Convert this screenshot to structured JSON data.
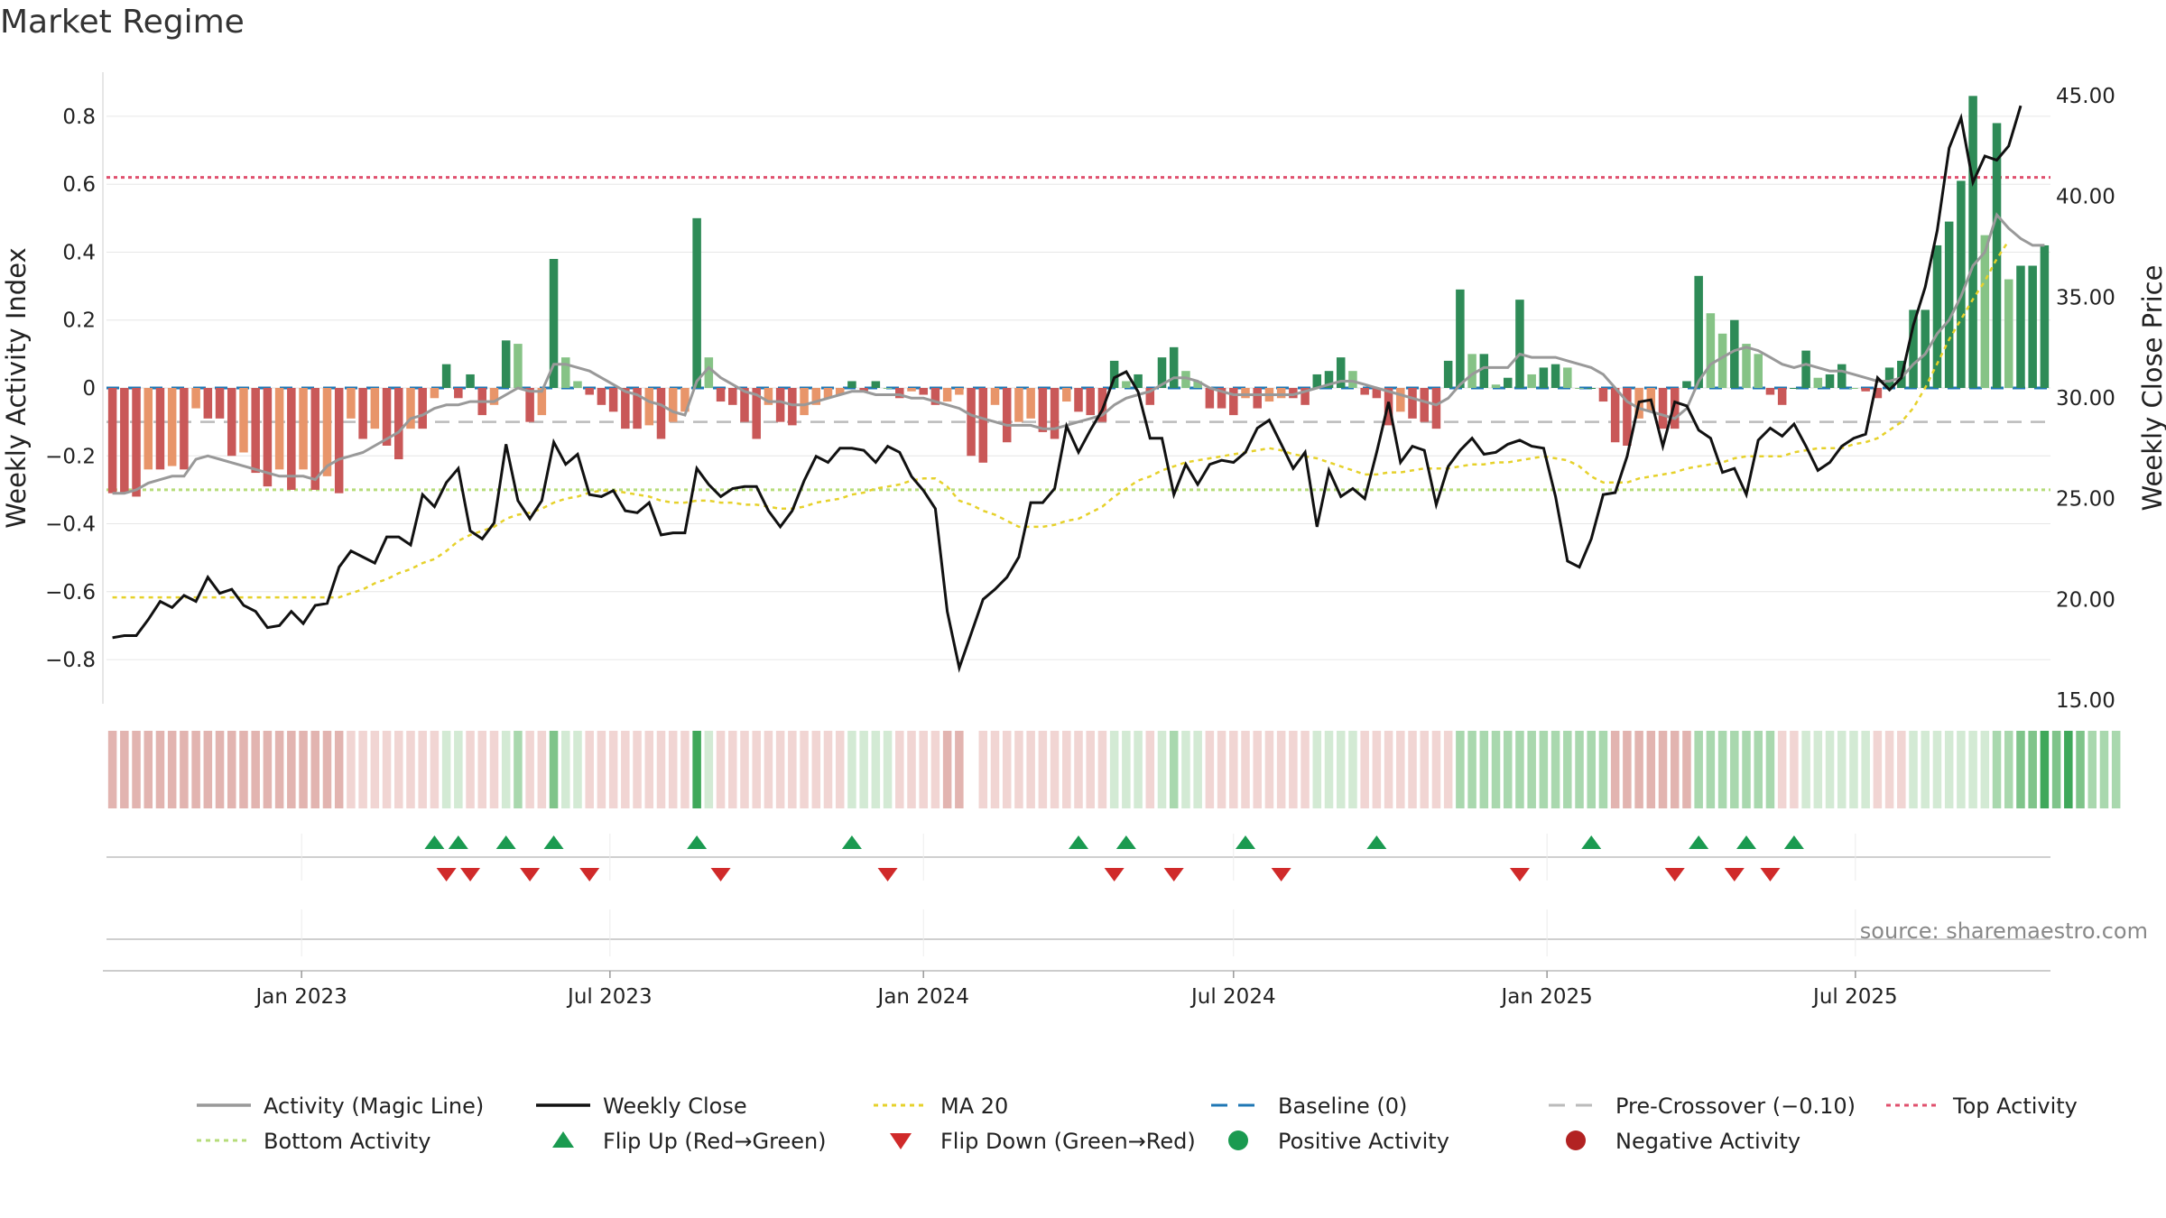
{
  "title": "Market Regime",
  "source": "source: sharemaestro.com",
  "colors": {
    "strong_green": "#2e8b57",
    "light_green": "#86c386",
    "strong_red": "#c95858",
    "light_red": "#e8956a",
    "magic_line": "#999999",
    "close": "#111111",
    "ma20": "#e6d12b",
    "baseline": "#1f77b4",
    "pre_crossover": "#bbbbbb",
    "top": "#e0506e",
    "bottom": "#b6dc7a",
    "flip_up": "#1a9a50",
    "flip_down": "#d02a2a"
  },
  "chart_data": {
    "type": "bar",
    "x_start": "2022-09-12",
    "x_step_days": 7,
    "left_axis": {
      "label": "Weekly Activity Index",
      "ylim": [
        -0.93,
        0.93
      ],
      "ticks": [
        0.8,
        0.6,
        0.4,
        0.2,
        0,
        -0.2,
        -0.4,
        -0.6,
        -0.8
      ],
      "tick_labels": [
        "0.8",
        "0.6",
        "0.4",
        "0.2",
        "0",
        "−0.2",
        "−0.4",
        "−0.6",
        "−0.8"
      ]
    },
    "right_axis": {
      "label": "Weekly Close Price",
      "ylim": [
        15,
        45
      ],
      "ticks": [
        45,
        40,
        35,
        30,
        25,
        20,
        15
      ],
      "tick_labels": [
        "45.00",
        "40.00",
        "35.00",
        "30.00",
        "25.00",
        "20.00",
        "15.00"
      ]
    },
    "x_ticks": [
      {
        "date": "2023-01-01",
        "label": "Jan 2023"
      },
      {
        "date": "2023-07-01",
        "label": "Jul 2023"
      },
      {
        "date": "2024-01-01",
        "label": "Jan 2024"
      },
      {
        "date": "2024-07-01",
        "label": "Jul 2024"
      },
      {
        "date": "2025-01-01",
        "label": "Jan 2025"
      },
      {
        "date": "2025-07-01",
        "label": "Jul 2025"
      }
    ],
    "reference_lines": {
      "baseline": 0,
      "pre_crossover": -0.1,
      "top": 0.62,
      "bottom": -0.3
    },
    "activity": [
      -0.31,
      -0.31,
      -0.32,
      -0.24,
      -0.24,
      -0.23,
      -0.24,
      -0.06,
      -0.09,
      -0.09,
      -0.2,
      -0.19,
      -0.25,
      -0.29,
      -0.24,
      -0.3,
      -0.24,
      -0.3,
      -0.26,
      -0.31,
      -0.09,
      -0.15,
      -0.12,
      -0.17,
      -0.21,
      -0.12,
      -0.12,
      -0.03,
      0.07,
      -0.03,
      0.04,
      -0.08,
      -0.05,
      0.14,
      0.13,
      -0.1,
      -0.08,
      0.38,
      0.09,
      0.02,
      -0.02,
      -0.05,
      -0.07,
      -0.12,
      -0.12,
      -0.11,
      -0.15,
      -0.1,
      -0.07,
      0.5,
      0.09,
      -0.04,
      -0.05,
      -0.1,
      -0.15,
      -0.05,
      -0.1,
      -0.11,
      -0.08,
      -0.05,
      -0.03,
      -0.02,
      0.02,
      -0.01,
      0.02,
      0.0,
      -0.03,
      -0.01,
      -0.02,
      -0.05,
      -0.04,
      -0.02,
      -0.2,
      -0.22,
      -0.05,
      -0.16,
      -0.1,
      -0.09,
      -0.13,
      -0.15,
      -0.04,
      -0.07,
      -0.08,
      -0.1,
      0.08,
      0.02,
      0.04,
      -0.05,
      0.09,
      0.12,
      0.05,
      0.02,
      -0.06,
      -0.06,
      -0.08,
      -0.03,
      -0.06,
      -0.04,
      -0.03,
      -0.03,
      -0.05,
      0.04,
      0.05,
      0.09,
      0.05,
      -0.02,
      -0.03,
      -0.11,
      -0.07,
      -0.09,
      -0.1,
      -0.12,
      0.08,
      0.29,
      0.1,
      0.1,
      0.01,
      0.03,
      0.26,
      0.04,
      0.06,
      0.07,
      0.06,
      0.0,
      0.0,
      -0.04,
      -0.16,
      -0.17,
      -0.09,
      -0.07,
      -0.12,
      -0.12,
      0.02,
      0.33,
      0.22,
      0.16,
      0.2,
      0.13,
      0.1,
      -0.02,
      -0.05,
      0.0,
      0.11,
      0.03,
      0.04,
      0.07,
      0.0,
      -0.01,
      -0.03,
      0.06,
      0.08,
      0.23,
      0.23,
      0.42,
      0.49,
      0.61,
      0.86,
      0.45,
      0.78,
      0.32,
      0.36,
      0.36,
      0.42
    ],
    "magic_line": [
      -0.31,
      -0.31,
      -0.3,
      -0.28,
      -0.27,
      -0.26,
      -0.26,
      -0.21,
      -0.2,
      -0.21,
      -0.22,
      -0.23,
      -0.24,
      -0.25,
      -0.26,
      -0.26,
      -0.26,
      -0.27,
      -0.23,
      -0.21,
      -0.2,
      -0.19,
      -0.17,
      -0.15,
      -0.13,
      -0.09,
      -0.08,
      -0.06,
      -0.05,
      -0.05,
      -0.04,
      -0.04,
      -0.04,
      -0.02,
      0.0,
      -0.01,
      -0.01,
      0.07,
      0.07,
      0.06,
      0.05,
      0.03,
      0.01,
      -0.01,
      -0.02,
      -0.04,
      -0.05,
      -0.07,
      -0.08,
      0.02,
      0.06,
      0.03,
      0.01,
      -0.01,
      -0.02,
      -0.04,
      -0.04,
      -0.05,
      -0.05,
      -0.04,
      -0.03,
      -0.02,
      -0.01,
      -0.01,
      -0.02,
      -0.02,
      -0.02,
      -0.03,
      -0.03,
      -0.04,
      -0.05,
      -0.06,
      -0.08,
      -0.09,
      -0.1,
      -0.11,
      -0.11,
      -0.11,
      -0.12,
      -0.12,
      -0.11,
      -0.1,
      -0.09,
      -0.08,
      -0.05,
      -0.03,
      -0.02,
      -0.01,
      0.01,
      0.03,
      0.03,
      0.02,
      0.0,
      -0.01,
      -0.02,
      -0.02,
      -0.02,
      -0.02,
      -0.02,
      -0.02,
      -0.01,
      0.0,
      0.01,
      0.02,
      0.02,
      0.01,
      0.0,
      -0.01,
      -0.02,
      -0.03,
      -0.04,
      -0.05,
      -0.03,
      0.01,
      0.04,
      0.06,
      0.06,
      0.06,
      0.1,
      0.09,
      0.09,
      0.09,
      0.08,
      0.07,
      0.06,
      0.04,
      0.0,
      -0.04,
      -0.06,
      -0.07,
      -0.08,
      -0.09,
      -0.06,
      0.02,
      0.07,
      0.09,
      0.11,
      0.12,
      0.11,
      0.09,
      0.07,
      0.06,
      0.07,
      0.06,
      0.05,
      0.05,
      0.04,
      0.03,
      0.02,
      0.02,
      0.03,
      0.07,
      0.1,
      0.16,
      0.2,
      0.27,
      0.36,
      0.4,
      0.51,
      0.47,
      0.44,
      0.42,
      0.42
    ],
    "close": [
      18.1,
      18.2,
      18.2,
      19.0,
      19.9,
      19.6,
      20.2,
      19.9,
      21.1,
      20.3,
      20.5,
      19.7,
      19.4,
      18.6,
      18.7,
      19.4,
      18.8,
      19.7,
      19.8,
      21.6,
      22.4,
      22.1,
      21.8,
      23.1,
      23.1,
      22.7,
      25.2,
      24.6,
      25.8,
      26.5,
      23.4,
      23.0,
      23.8,
      27.7,
      24.9,
      24.0,
      24.9,
      27.8,
      26.7,
      27.2,
      25.2,
      25.1,
      25.4,
      24.4,
      24.3,
      24.8,
      23.2,
      23.3,
      23.3,
      26.5,
      25.7,
      25.1,
      25.5,
      25.6,
      25.6,
      24.4,
      23.6,
      24.4,
      25.9,
      27.1,
      26.8,
      27.5,
      27.5,
      27.4,
      26.8,
      27.6,
      27.3,
      26.1,
      25.4,
      24.5,
      19.4,
      16.6,
      18.3,
      20.0,
      20.5,
      21.1,
      22.1,
      24.8,
      24.8,
      25.5,
      28.6,
      27.3,
      28.4,
      29.4,
      31.0,
      31.3,
      30.3,
      28.0,
      28.0,
      25.2,
      26.7,
      25.7,
      26.7,
      26.9,
      26.8,
      27.3,
      28.5,
      28.9,
      27.7,
      26.5,
      27.3,
      23.6,
      26.4,
      25.1,
      25.5,
      25.0,
      27.3,
      29.8,
      26.8,
      27.6,
      27.4,
      24.7,
      26.6,
      27.4,
      28.0,
      27.2,
      27.3,
      27.7,
      27.9,
      27.6,
      27.5,
      25.1,
      21.9,
      21.6,
      23.0,
      25.2,
      25.3,
      27.1,
      29.8,
      29.9,
      27.6,
      29.8,
      29.6,
      28.4,
      28.0,
      26.3,
      26.5,
      25.2,
      27.9,
      28.5,
      28.1,
      28.7,
      27.6,
      26.4,
      26.8,
      27.6,
      28.0,
      28.2,
      31.0,
      30.4,
      31.0,
      33.6,
      35.5,
      38.3,
      42.4,
      43.9,
      40.7,
      42.0,
      41.8,
      42.5,
      44.5
    ],
    "ma20": [
      20.1,
      20.1,
      20.1,
      20.1,
      20.1,
      20.1,
      20.1,
      20.1,
      20.1,
      20.1,
      20.1,
      20.1,
      20.1,
      20.1,
      20.1,
      20.1,
      20.1,
      20.1,
      20.1,
      20.1,
      20.3,
      20.5,
      20.8,
      21.0,
      21.3,
      21.5,
      21.8,
      22.0,
      22.4,
      22.9,
      23.2,
      23.4,
      23.6,
      24.0,
      24.2,
      24.3,
      24.5,
      24.8,
      25.0,
      25.1,
      25.3,
      25.4,
      25.4,
      25.3,
      25.2,
      25.1,
      24.9,
      24.8,
      24.8,
      24.9,
      24.9,
      24.8,
      24.8,
      24.7,
      24.7,
      24.6,
      24.5,
      24.5,
      24.6,
      24.8,
      24.9,
      25.0,
      25.2,
      25.3,
      25.5,
      25.6,
      25.7,
      25.9,
      26.0,
      26.0,
      25.6,
      24.9,
      24.7,
      24.4,
      24.2,
      23.9,
      23.6,
      23.6,
      23.6,
      23.7,
      23.9,
      24.0,
      24.3,
      24.6,
      25.1,
      25.5,
      25.9,
      26.1,
      26.4,
      26.6,
      26.8,
      26.9,
      27.0,
      27.1,
      27.2,
      27.3,
      27.4,
      27.5,
      27.4,
      27.2,
      27.1,
      27.0,
      26.8,
      26.6,
      26.4,
      26.2,
      26.2,
      26.3,
      26.3,
      26.4,
      26.5,
      26.5,
      26.5,
      26.6,
      26.7,
      26.7,
      26.8,
      26.8,
      26.9,
      27.0,
      27.1,
      27.0,
      26.9,
      26.6,
      26.1,
      25.8,
      25.8,
      25.8,
      26.0,
      26.1,
      26.2,
      26.3,
      26.5,
      26.6,
      26.7,
      26.8,
      27.0,
      27.1,
      27.1,
      27.1,
      27.1,
      27.3,
      27.4,
      27.5,
      27.5,
      27.5,
      27.7,
      27.8,
      28.0,
      28.4,
      28.8,
      29.5,
      30.5,
      31.7,
      32.9,
      33.9,
      34.9,
      35.8,
      36.9,
      37.8
    ],
    "regime_strip": [
      -2,
      -2,
      -2,
      -2,
      -2,
      -2,
      -2,
      -2,
      -2,
      -2,
      -2,
      -2,
      -2,
      -2,
      -2,
      -2,
      -2,
      -2,
      -2,
      -2,
      -1,
      -1,
      -1,
      -1,
      -1,
      -1,
      -1,
      -1,
      1,
      1,
      -1,
      -1,
      -1,
      1,
      2,
      -1,
      -1,
      3,
      1,
      1,
      -1,
      -1,
      -1,
      -1,
      -1,
      -1,
      -1,
      -1,
      -1,
      4,
      1,
      -1,
      -1,
      -1,
      -1,
      -1,
      -1,
      -1,
      -1,
      -1,
      -1,
      -1,
      1,
      1,
      1,
      1,
      -1,
      -1,
      -1,
      -1,
      -2,
      -2,
      0,
      -1,
      -1,
      -1,
      -1,
      -1,
      -1,
      -1,
      -1,
      -1,
      -1,
      -1,
      1,
      1,
      1,
      -1,
      1,
      2,
      1,
      1,
      -1,
      -1,
      -1,
      -1,
      -1,
      -1,
      -1,
      -1,
      -1,
      1,
      1,
      1,
      1,
      -1,
      -1,
      -1,
      -1,
      -1,
      -1,
      -1,
      -1,
      2,
      2,
      2,
      2,
      2,
      2,
      2,
      2,
      2,
      2,
      2,
      2,
      2,
      -2,
      -2,
      -2,
      -2,
      -2,
      -2,
      -2,
      2,
      2,
      2,
      2,
      2,
      2,
      2,
      -1,
      -1,
      1,
      1,
      1,
      1,
      1,
      1,
      -1,
      -1,
      -1,
      1,
      1,
      1,
      1,
      1,
      1,
      1,
      2,
      2,
      3,
      3,
      4,
      3,
      4,
      3,
      2,
      2,
      2
    ],
    "flip_up_weeks": [
      27,
      29,
      33,
      37,
      49,
      62,
      81,
      85,
      95,
      106,
      124,
      133,
      137,
      141
    ],
    "flip_down_weeks": [
      28,
      30,
      35,
      40,
      51,
      65,
      84,
      89,
      98,
      118,
      131,
      136,
      139
    ],
    "legend": [
      {
        "label": "Activity (Magic Line)",
        "kind": "line-solid",
        "color": "#999999"
      },
      {
        "label": "Weekly Close",
        "kind": "line-solid",
        "color": "#111111"
      },
      {
        "label": "MA 20",
        "kind": "line-dotted",
        "color": "#e6d12b"
      },
      {
        "label": "Baseline (0)",
        "kind": "line-dashed",
        "color": "#1f77b4"
      },
      {
        "label": "Pre-Crossover (−0.10)",
        "kind": "line-dashed",
        "color": "#bbbbbb"
      },
      {
        "label": "Top Activity",
        "kind": "line-dotted",
        "color": "#e0506e"
      },
      {
        "label": "Bottom Activity",
        "kind": "line-dotted",
        "color": "#b6dc7a"
      },
      {
        "label": "Flip Up (Red→Green)",
        "kind": "tri-up",
        "color": "#1a9a50"
      },
      {
        "label": "Flip Down (Green→Red)",
        "kind": "tri-down",
        "color": "#d02a2a"
      },
      {
        "label": "Positive Activity",
        "kind": "dot",
        "color": "#1a9a50"
      },
      {
        "label": "Negative Activity",
        "kind": "dot",
        "color": "#b22222"
      }
    ]
  }
}
